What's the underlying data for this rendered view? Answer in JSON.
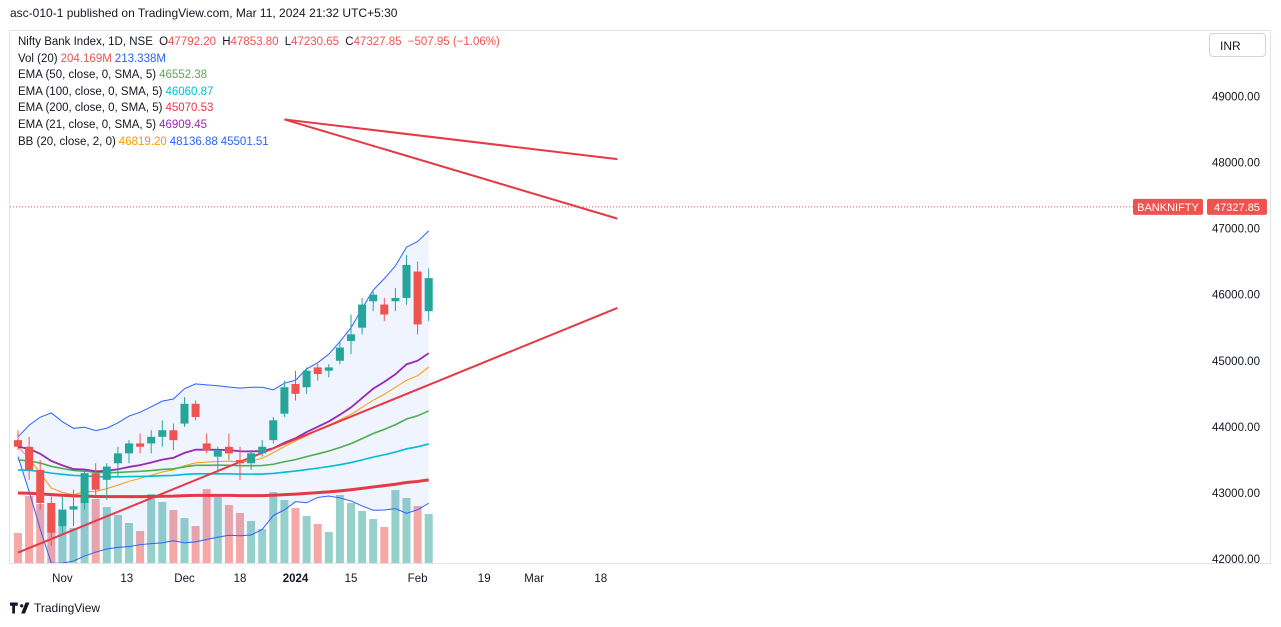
{
  "header": {
    "text": "asc-010-1 published on TradingView.com, Mar 11, 2024 21:32 UTC+5:30"
  },
  "currency_button": "INR",
  "footer": {
    "brand": "TradingView"
  },
  "legend": {
    "symbol": "Nifty Bank Index, 1D, NSE",
    "ohlc": [
      {
        "k": "O",
        "v": "47792.20"
      },
      {
        "k": "H",
        "v": "47853.80"
      },
      {
        "k": "L",
        "v": "47230.65"
      },
      {
        "k": "C",
        "v": "47327.85"
      },
      {
        "k": "",
        "v": "−507.95 (−1.06%)"
      }
    ],
    "indicators": [
      {
        "label": "Vol (20)",
        "values": [
          {
            "v": "204.169M",
            "color": "#ef5350"
          },
          {
            "v": "213.338M",
            "color": "#2962ff"
          }
        ]
      },
      {
        "label": "EMA (50, close, 0, SMA, 5)",
        "values": [
          {
            "v": "46552.38",
            "color": "#4caf50"
          }
        ]
      },
      {
        "label": "EMA (100, close, 0, SMA, 5)",
        "values": [
          {
            "v": "46060.87",
            "color": "#00bcd4"
          }
        ]
      },
      {
        "label": "EMA (200, close, 0, SMA, 5)",
        "values": [
          {
            "v": "45070.53",
            "color": "#e53945"
          }
        ]
      },
      {
        "label": "EMA (21, close, 0, SMA, 5)",
        "values": [
          {
            "v": "46909.45",
            "color": "#9c27b0"
          }
        ]
      },
      {
        "label": "BB (20, close, 2, 0)",
        "values": [
          {
            "v": "46819.20",
            "color": "#ff9800"
          },
          {
            "v": "48136.88",
            "color": "#2962ff"
          },
          {
            "v": "45501.51",
            "color": "#2962ff"
          }
        ]
      }
    ]
  },
  "colors": {
    "up": "#26a69a",
    "down": "#ef5350",
    "up_vol": "#95d1ca",
    "down_vol": "#f5a8a6",
    "ema50": "#4caf50",
    "ema100": "#00bcd4",
    "ema200": "#e53945",
    "ema21": "#9c27b0",
    "bb_basis": "#ff9800",
    "bb_band": "#2962ff",
    "trend": "#e53945"
  },
  "chart_data": {
    "type": "candlestick",
    "title": "Nifty Bank Index, 1D, NSE",
    "ylim": [
      41700,
      49700
    ],
    "y_ticks": [
      "42000.00",
      "43000.00",
      "44000.00",
      "45000.00",
      "46000.00",
      "47000.00",
      "48000.00",
      "49000.00"
    ],
    "x_ticks": [
      {
        "label": "Nov",
        "i": 4
      },
      {
        "label": "13",
        "i": 9.8
      },
      {
        "label": "Dec",
        "i": 15
      },
      {
        "label": "18",
        "i": 20
      },
      {
        "label": "2024",
        "i": 25
      },
      {
        "label": "15",
        "i": 30
      },
      {
        "label": "Feb",
        "i": 36
      },
      {
        "label": "19",
        "i": 42
      },
      {
        "label": "Mar",
        "i": 46.5
      },
      {
        "label": "18",
        "i": 52.5
      }
    ],
    "last_price": {
      "value": 47327.85,
      "price_label": "47327.85",
      "name_label": "BANKNIFTY"
    },
    "candles": [
      [
        43800,
        43950,
        43650,
        43700
      ],
      [
        43700,
        43850,
        43200,
        43350
      ],
      [
        43350,
        43500,
        42750,
        42850
      ],
      [
        42850,
        42950,
        42200,
        42400
      ],
      [
        42500,
        42950,
        42400,
        42750
      ],
      [
        42750,
        43050,
        42500,
        42800
      ],
      [
        42850,
        43350,
        42750,
        43300
      ],
      [
        43300,
        43450,
        42950,
        43050
      ],
      [
        43200,
        43450,
        42900,
        43400
      ],
      [
        43450,
        43700,
        43250,
        43600
      ],
      [
        43600,
        43800,
        43450,
        43750
      ],
      [
        43750,
        43900,
        43600,
        43700
      ],
      [
        43750,
        43950,
        43600,
        43850
      ],
      [
        43850,
        44100,
        43700,
        43950
      ],
      [
        43950,
        44050,
        43650,
        43800
      ],
      [
        44050,
        44450,
        44000,
        44350
      ],
      [
        44350,
        44400,
        44100,
        44150
      ],
      [
        43750,
        43900,
        43600,
        43650
      ],
      [
        43550,
        43700,
        43300,
        43650
      ],
      [
        43700,
        43900,
        43500,
        43600
      ],
      [
        43500,
        43700,
        43200,
        43450
      ],
      [
        43450,
        43650,
        43350,
        43600
      ],
      [
        43600,
        43800,
        43550,
        43700
      ],
      [
        43800,
        44150,
        43750,
        44100
      ],
      [
        44200,
        44700,
        44150,
        44600
      ],
      [
        44650,
        44850,
        44400,
        44500
      ],
      [
        44600,
        44900,
        44500,
        44850
      ],
      [
        44900,
        44950,
        44700,
        44800
      ],
      [
        44850,
        44950,
        44750,
        44900
      ],
      [
        45000,
        45300,
        44950,
        45200
      ],
      [
        45300,
        45700,
        45100,
        45400
      ],
      [
        45500,
        45950,
        45400,
        45850
      ],
      [
        45900,
        46050,
        45750,
        46000
      ],
      [
        45850,
        45950,
        45600,
        45700
      ],
      [
        45900,
        46100,
        45750,
        45950
      ],
      [
        45950,
        46600,
        45850,
        46450
      ],
      [
        46350,
        46500,
        45400,
        45550
      ],
      [
        45750,
        46400,
        45600,
        46250
      ]
    ]
  }
}
